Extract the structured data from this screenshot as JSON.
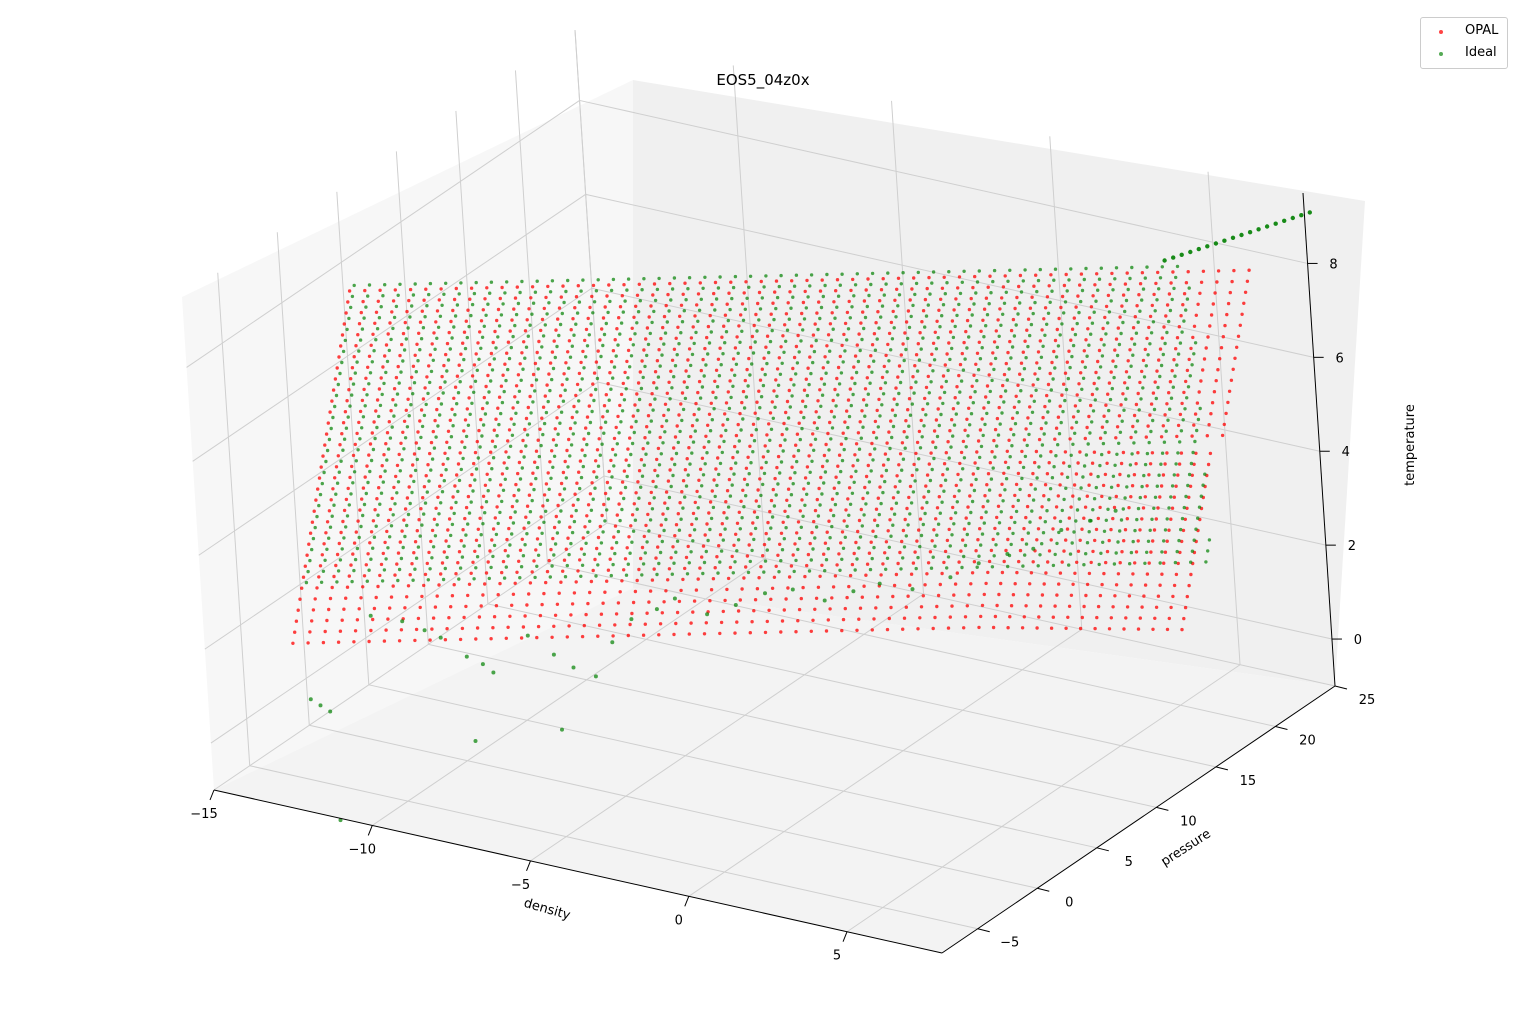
{
  "chart_data": {
    "type": "scatter",
    "projection": "3d",
    "title": "EOS5_04z0x",
    "xlabel": "density",
    "ylabel": "pressure",
    "zlabel": "temperature",
    "xlim": [
      -15,
      8
    ],
    "ylim": [
      -8,
      25
    ],
    "zlim": [
      -1,
      9.5
    ],
    "xticks": [
      "−15",
      "−10",
      "−5",
      "0",
      "5"
    ],
    "yticks": [
      "−5",
      "0",
      "5",
      "10",
      "15",
      "20",
      "25"
    ],
    "zticks": [
      "0",
      "2",
      "4",
      "6",
      "8"
    ],
    "grid": true,
    "legend_position": "top-right",
    "series": [
      {
        "name": "OPAL",
        "color": "#ff0000",
        "description": "grid of (density, pressure, temperature) points; temperature ~1.6 to 8.0, density ~-14 to 7",
        "temperature_range": [
          1.6,
          8.0
        ],
        "density_range": [
          -14,
          7
        ]
      },
      {
        "name": "Ideal",
        "color": "#008000",
        "description": "ideal-gas grid of the same points, extending to temperature ~9.0",
        "temperature_range": [
          -1.0,
          9.0
        ],
        "density_range": [
          -14,
          8
        ]
      }
    ]
  }
}
